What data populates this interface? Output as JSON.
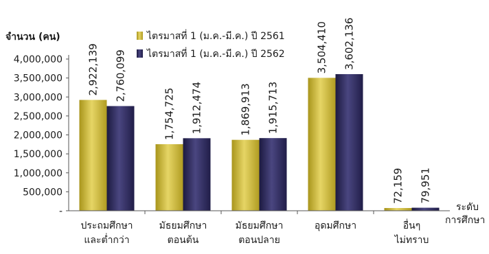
{
  "chart_data": {
    "type": "bar",
    "ylabel": "จำนวน (คน)",
    "xlabel": [
      "ระดับ",
      "การศึกษา"
    ],
    "ylim": [
      0,
      4000000
    ],
    "yticks": [
      0,
      500000,
      1000000,
      1500000,
      2000000,
      2500000,
      3000000,
      3500000,
      4000000
    ],
    "ytick_labels": [
      "-",
      "500,000",
      "1,000,000",
      "1,500,000",
      "2,000,000",
      "2,500,000",
      "3,000,000",
      "3,500,000",
      "4,000,000"
    ],
    "grid": false,
    "legend_position": "top-center",
    "categories": [
      [
        "ประถมศึกษา",
        "และต่ำกว่า"
      ],
      [
        "มัธยมศึกษา",
        "ตอนต้น"
      ],
      [
        "มัธยมศึกษา",
        "ตอนปลาย"
      ],
      [
        "อุดมศึกษา"
      ],
      [
        "อื่นๆ",
        "ไม่ทราบ"
      ]
    ],
    "series": [
      {
        "name": "ไตรมาสที่ 1 (ม.ค.-มี.ค.) ปี 2561",
        "color": "#c9b532",
        "values": [
          2922139,
          1754725,
          1869913,
          3504410,
          72159
        ],
        "labels": [
          "2,922,139",
          "1,754,725",
          "1,869,913",
          "3,504,410",
          "72,159"
        ]
      },
      {
        "name": "ไตรมาสที่ 1 (ม.ค.-มี.ค.) ปี 2562",
        "color": "#2b2857",
        "values": [
          2760099,
          1912474,
          1915713,
          3602136,
          79951
        ],
        "labels": [
          "2,760,099",
          "1,912,474",
          "1,915,713",
          "3,602,136",
          "79,951"
        ]
      }
    ]
  }
}
